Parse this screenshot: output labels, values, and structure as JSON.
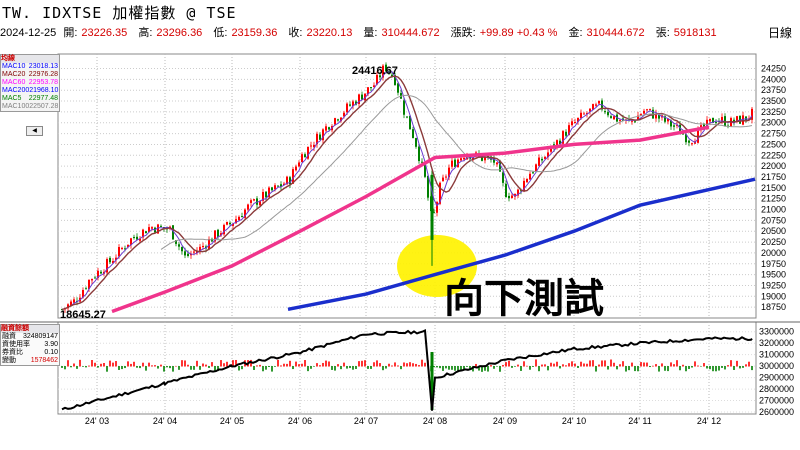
{
  "title": "TW. IDXTSE 加權指數 @ TSE",
  "quote": {
    "date": "2024-12-25",
    "open_label": "開:",
    "open": "23226.35",
    "high_label": "高:",
    "high": "23296.36",
    "low_label": "低:",
    "low": "23159.36",
    "close_label": "收:",
    "close": "23220.13",
    "volume_label": "量:",
    "volume": "310444.672",
    "change_label": "漲跌:",
    "change": "+99.89 +0.43 %",
    "amount_label": "金:",
    "amount": "310444.672",
    "sheets_label": "張:",
    "sheets": "5918131",
    "frequency": "日線"
  },
  "legend": {
    "header": "均線",
    "items": [
      {
        "name": "MAC10",
        "value": "23018.13",
        "color": "#0000ff"
      },
      {
        "name": "MAC20",
        "value": "22976.28",
        "color": "#800000"
      },
      {
        "name": "MAC60",
        "value": "22953.78",
        "color": "#ff00ff"
      },
      {
        "name": "MAC200",
        "value": "21968.10",
        "color": "#0000ff"
      },
      {
        "name": "MAC5",
        "value": "22977.48",
        "color": "#008000"
      },
      {
        "name": "MAC100",
        "value": "22507.28",
        "color": "#808080"
      }
    ],
    "button_label": "◀"
  },
  "lower_legend": {
    "header": "融資餘額",
    "items": [
      {
        "name": "融資",
        "value": "324809147"
      },
      {
        "name": "資使用率",
        "value": "3.90"
      },
      {
        "name": "券資比",
        "value": "0.10"
      },
      {
        "name": "變動",
        "value": "1578462"
      }
    ]
  },
  "annotations": {
    "peak_label": "24416.67",
    "low_label": "18645.27",
    "callout": "向下測試"
  },
  "colors": {
    "up": "#ff0000",
    "down": "#008000",
    "ma_pink": "#f0348c",
    "ma_blue": "#1a2ecc",
    "ma_gray": "#999999",
    "ma_brown": "#8b3a3a",
    "ma_purple": "#6a3ad0",
    "highlight": "#fff200"
  },
  "chart_data": [
    {
      "type": "line",
      "title": "",
      "x_ticks": [
        "24' 03",
        "24' 04",
        "24' 05",
        "24' 06",
        "24' 07",
        "24' 08",
        "24' 09",
        "24' 10",
        "24' 11",
        "24' 12"
      ],
      "y_ticks": [
        "18750",
        "19000",
        "19250",
        "19500",
        "19750",
        "20000",
        "20250",
        "20500",
        "20750",
        "21000",
        "21250",
        "21500",
        "21750",
        "22000",
        "22250",
        "22500",
        "22750",
        "23000",
        "23250",
        "23500",
        "23750",
        "24000",
        "24250"
      ],
      "ylim": [
        18500,
        24400
      ],
      "series": [
        {
          "name": "price",
          "x": [
            "24' 03",
            "24' 04",
            "24' 05",
            "24' 06",
            "24' 07",
            "24' 08",
            "24' 09",
            "24' 10",
            "24' 11",
            "24' 12"
          ],
          "values": [
            18900,
            20200,
            20700,
            21800,
            24000,
            21300,
            21600,
            22800,
            23000,
            23100
          ]
        },
        {
          "name": "MAC60",
          "x": [
            "24' 03",
            "24' 04",
            "24' 05",
            "24' 06",
            "24' 07",
            "24' 08",
            "24' 09",
            "24' 10",
            "24' 11",
            "24' 12"
          ],
          "values": [
            18650,
            19100,
            19700,
            20500,
            21300,
            22200,
            22300,
            22500,
            22600,
            22900
          ]
        },
        {
          "name": "MAC200",
          "x": [
            "24' 06",
            "24' 07",
            "24' 08",
            "24' 09",
            "24' 10",
            "24' 11",
            "24' 12"
          ],
          "values": [
            18700,
            19050,
            19500,
            19950,
            20500,
            21100,
            21700
          ]
        }
      ]
    },
    {
      "type": "line",
      "title": "",
      "y_ticks": [
        "2600000",
        "2700000",
        "2800000",
        "2900000",
        "3000000",
        "3100000",
        "3200000",
        "3300000"
      ],
      "ylim": [
        2600000,
        3350000
      ],
      "series": [
        {
          "name": "融資",
          "x": [
            "24' 03",
            "24' 04",
            "24' 05",
            "24' 06",
            "24' 07",
            "24' 08",
            "24' 09",
            "24' 10",
            "24' 11",
            "24' 12"
          ],
          "values": [
            2620000,
            2850000,
            3000000,
            3120000,
            3280000,
            2900000,
            3050000,
            3150000,
            3200000,
            3240000
          ]
        }
      ]
    }
  ]
}
